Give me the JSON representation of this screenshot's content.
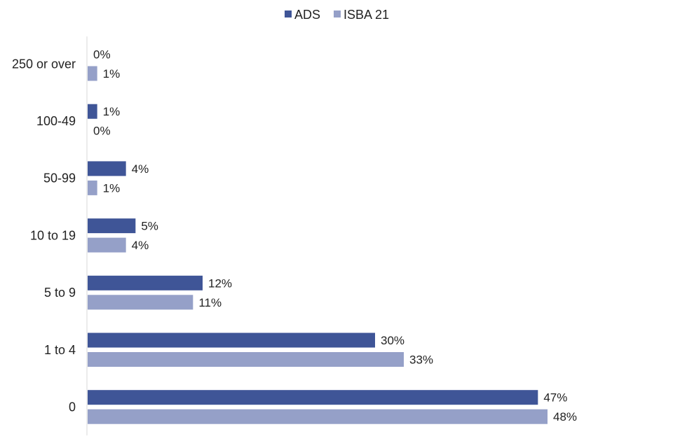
{
  "chart_data": {
    "type": "bar",
    "orientation": "horizontal",
    "categories": [
      "250 or over",
      "100-49",
      "50-99",
      "10 to 19",
      "5 to 9",
      "1 to 4",
      "0"
    ],
    "series": [
      {
        "name": "ADS",
        "values": [
          0,
          1,
          4,
          5,
          12,
          30,
          47
        ],
        "labels": [
          "0%",
          "1%",
          "4%",
          "5%",
          "12%",
          "30%",
          "47%"
        ]
      },
      {
        "name": "ISBA 21",
        "values": [
          1,
          0,
          1,
          4,
          11,
          33,
          48
        ],
        "labels": [
          "1%",
          "0%",
          "1%",
          "4%",
          "11%",
          "33%",
          "48%"
        ]
      }
    ],
    "colors": [
      "#3f5597",
      "#95a0c8"
    ],
    "legend_position": "top",
    "grid": false,
    "xlim": [
      0,
      48
    ]
  }
}
